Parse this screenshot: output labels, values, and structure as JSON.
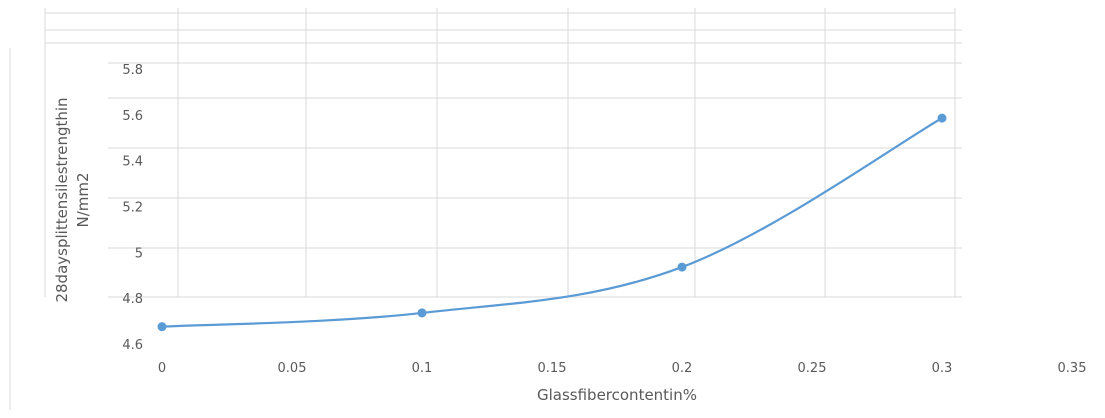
{
  "chart_data": {
    "type": "line",
    "title": "",
    "xlabel": "Glassfibercontentin%",
    "ylabel_lines": [
      "28daysplittensilestrengthin",
      "N/mm2"
    ],
    "x": [
      0,
      0.1,
      0.2,
      0.3
    ],
    "series": [
      {
        "values": [
          4.68,
          4.74,
          4.94,
          5.59
        ]
      }
    ],
    "xlim": [
      0,
      0.35
    ],
    "ylim": [
      4.6,
      5.8
    ],
    "x_ticks": [
      "0",
      "0.05",
      "0.1",
      "0.15",
      "0.2",
      "0.25",
      "0.3",
      "0.35"
    ],
    "y_ticks": [
      "4.6",
      "4.8",
      "5",
      "5.2",
      "5.4",
      "5.6",
      "5.8"
    ],
    "smooth": true,
    "markers": true,
    "grid": true,
    "line_color": "#5b9bd5",
    "grid_color": "#d9d9d9"
  }
}
